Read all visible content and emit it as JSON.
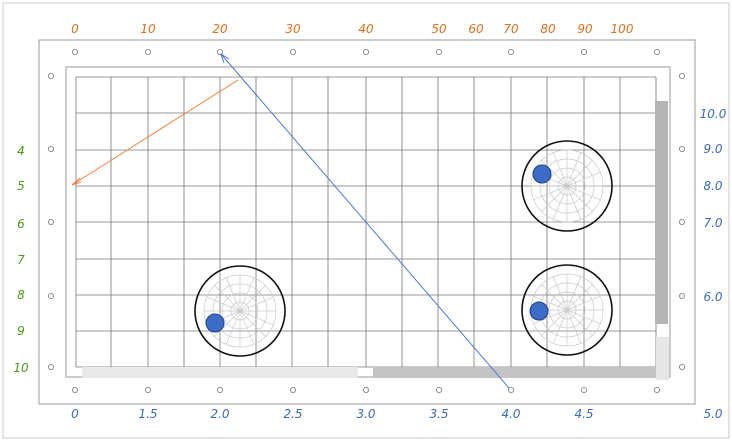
{
  "top_labels": [
    "0",
    "10",
    "20",
    "30",
    "40",
    "50",
    "60",
    "70",
    "80",
    "90",
    "100"
  ],
  "left_labels": [
    "4",
    "5",
    "6",
    "7",
    "8",
    "9",
    "10"
  ],
  "right_labels": [
    "10.0",
    "9.0",
    "8.0",
    "7.0",
    "6.0",
    "5.0"
  ],
  "bottom_labels": [
    "0",
    "1.5",
    "2.0",
    "2.5",
    "3.0",
    "3.5",
    "4.0",
    "4.5"
  ],
  "colors": {
    "top": "#e07020",
    "left": "#4a9a1a",
    "right": "#3a6ab8",
    "bottom": "#3a6ab8",
    "orange_arrow": "#f08040",
    "blue_arrow": "#4a78d0",
    "marker": "#3a6cc8"
  }
}
